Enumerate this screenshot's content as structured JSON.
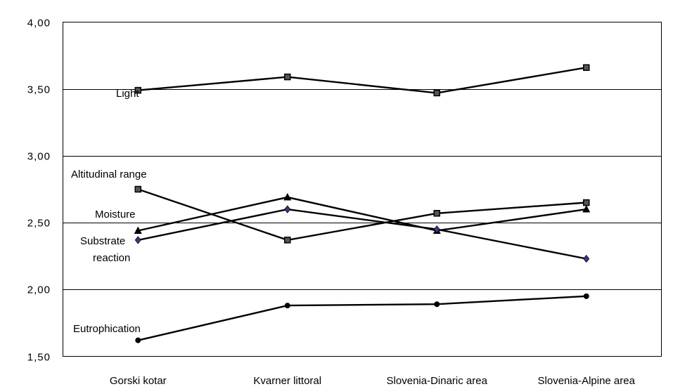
{
  "chart_data": {
    "type": "line",
    "categories": [
      "Gorski kotar",
      "Kvarner littoral",
      "Slovenia-Dinaric area",
      "Slovenia-Alpine area"
    ],
    "ylim": [
      1.5,
      4.0
    ],
    "yticks": [
      "1,50",
      "2,00",
      "2,50",
      "3,00",
      "3,50",
      "4,00"
    ],
    "grid": true,
    "legend": "none",
    "series": [
      {
        "name": "Light",
        "marker": "square",
        "values": [
          3.49,
          3.59,
          3.47,
          3.66
        ]
      },
      {
        "name": "Altitudinal range",
        "marker": "square",
        "values": [
          2.75,
          2.37,
          2.57,
          2.65
        ]
      },
      {
        "name": "Moisture",
        "marker": "triangle",
        "values": [
          2.44,
          2.69,
          2.44,
          2.6
        ]
      },
      {
        "name": "Substrate reaction",
        "marker": "diamond",
        "values": [
          2.37,
          2.6,
          2.45,
          2.23
        ]
      },
      {
        "name": "Eutrophication",
        "marker": "circle",
        "values": [
          1.62,
          1.88,
          1.89,
          1.95
        ]
      }
    ],
    "annotations": {
      "light": "Light",
      "altitudinal": "Altitudinal range",
      "moisture": "Moisture",
      "substrate_line1": "Substrate",
      "substrate_line2": "reaction",
      "eutrophication": "Eutrophication"
    },
    "colors": {
      "line": "#000000",
      "diamond_fill": "#3a3a8c",
      "square_fill": "#555555"
    }
  }
}
